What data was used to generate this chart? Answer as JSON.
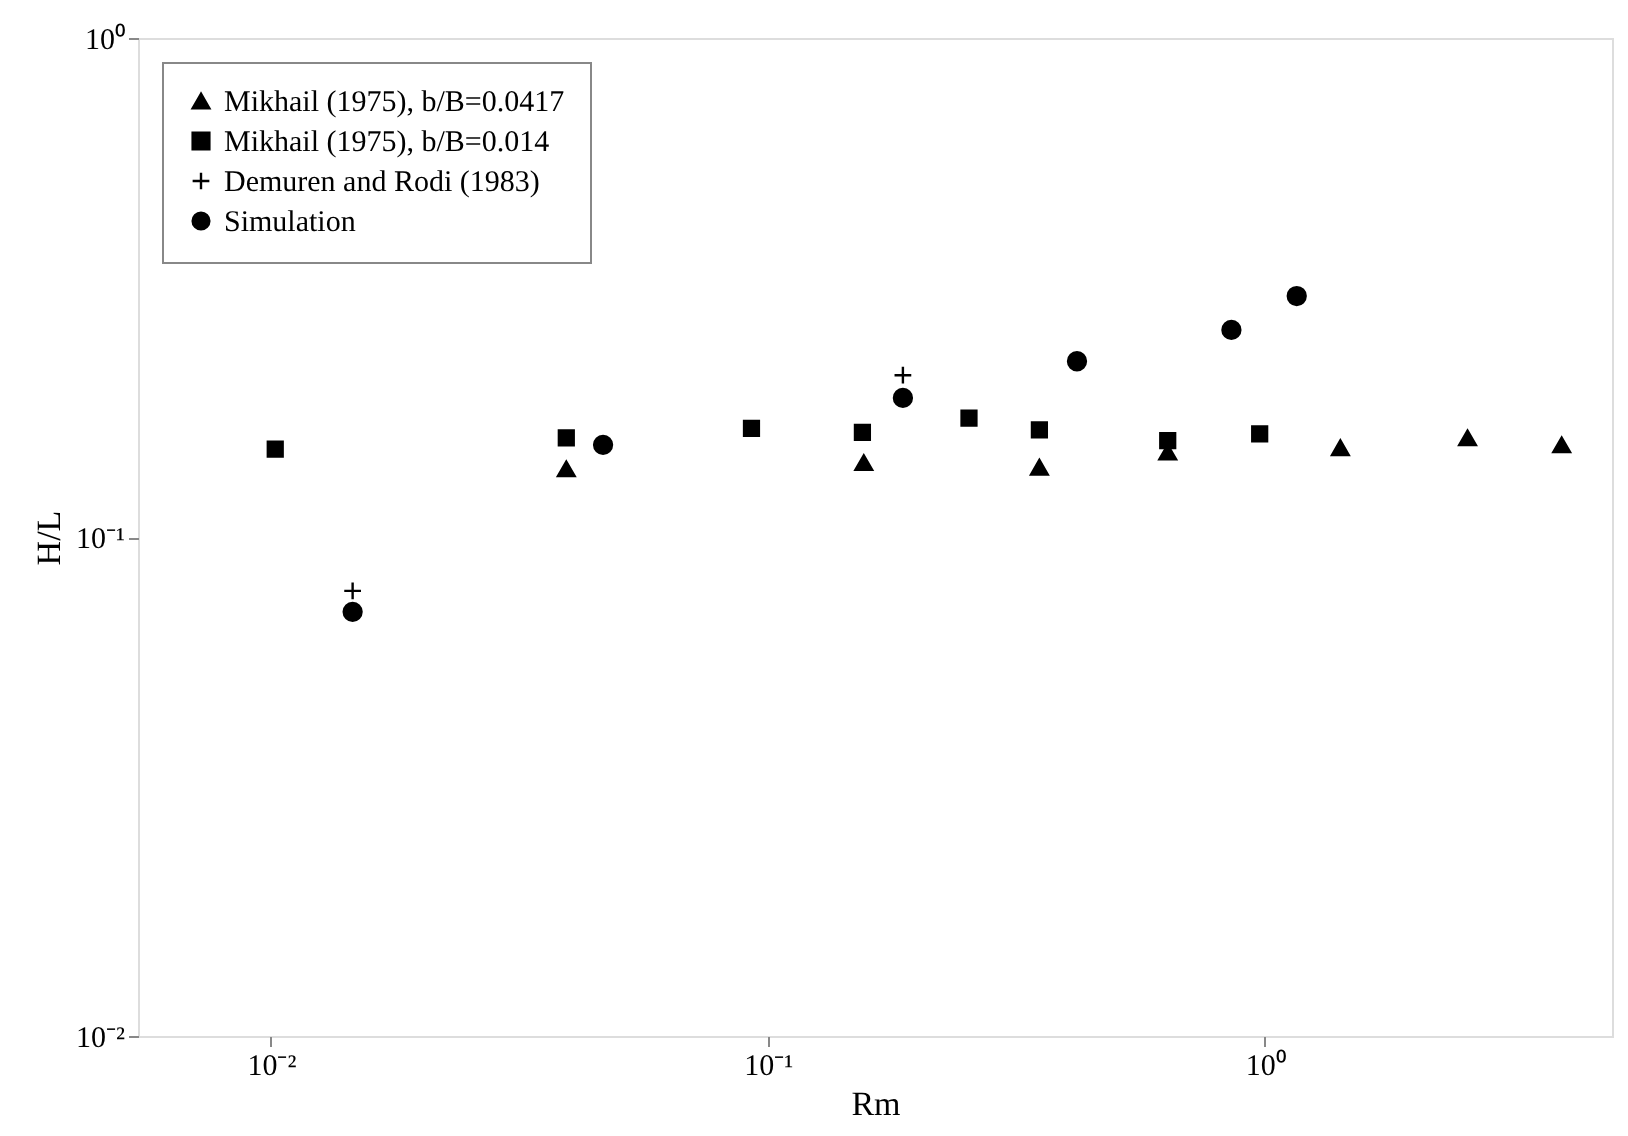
{
  "chart_data": {
    "type": "scatter",
    "xlabel": "Rm",
    "ylabel": "H/L",
    "log": "xy",
    "grid": false,
    "legend": "top left",
    "xlim": [
      0.0054,
      5
    ],
    "ylim": [
      0.01,
      1
    ],
    "xticks": [
      {
        "value": 0.01,
        "label": "10⁻²"
      },
      {
        "value": 0.1,
        "label": "10⁻¹"
      },
      {
        "value": 1,
        "label": "10⁰"
      }
    ],
    "yticks": [
      {
        "value": 0.01,
        "label": "10⁻²"
      },
      {
        "value": 0.1,
        "label": "10⁻¹"
      },
      {
        "value": 1,
        "label": "10⁰"
      }
    ],
    "series": [
      {
        "name": "Mikhail (1975), b/B=0.0417",
        "color": "#000000",
        "marker": "triangle",
        "x": [
          0.0393,
          0.156,
          0.352,
          0.638,
          1.42,
          2.56,
          3.96
        ],
        "values": [
          0.137,
          0.141,
          0.138,
          0.148,
          0.151,
          0.158,
          0.153
        ]
      },
      {
        "name": "Mikhail (1975), b/B=0.014",
        "color": "#000000",
        "marker": "square",
        "x": [
          0.0102,
          0.0393,
          0.0927,
          0.155,
          0.254,
          0.352,
          0.638,
          0.977
        ],
        "values": [
          0.15,
          0.158,
          0.165,
          0.162,
          0.173,
          0.164,
          0.156,
          0.161
        ]
      },
      {
        "name": "Demuren and Rodi (1983)",
        "color": "#000000",
        "marker": "cross",
        "x": [
          0.0146,
          0.187
        ],
        "values": [
          0.078,
          0.211
        ]
      },
      {
        "name": "Simulation",
        "color": "#000000",
        "marker": "circle",
        "x": [
          0.0146,
          0.0466,
          0.187,
          0.419,
          0.857,
          1.16
        ],
        "values": [
          0.0708,
          0.153,
          0.19,
          0.225,
          0.26,
          0.304
        ]
      }
    ]
  }
}
